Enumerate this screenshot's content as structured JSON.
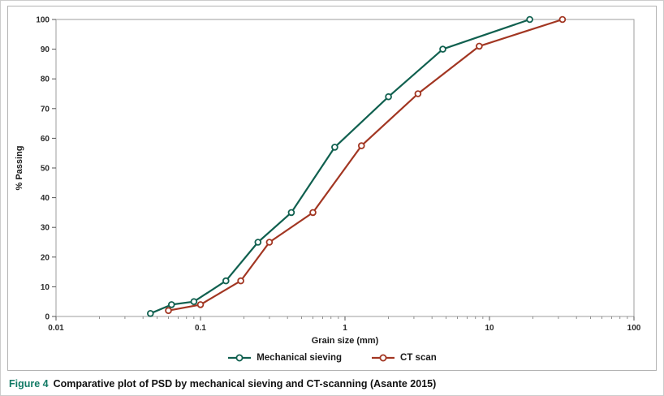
{
  "figure": {
    "caption_label": "Figure 4",
    "caption_text": "Comparative plot of PSD by mechanical sieving and CT-scanning (Asante 2015)",
    "caption_label_color": "#117a65"
  },
  "chart_data": {
    "type": "line",
    "x_scale": "log",
    "xlabel": "Grain size (mm)",
    "ylabel": "% Passing",
    "xlim": [
      0.01,
      100
    ],
    "ylim": [
      0,
      100
    ],
    "x_ticks": [
      0.01,
      0.1,
      1,
      10,
      100
    ],
    "x_tick_labels": [
      "0.01",
      "0.1",
      "1",
      "10",
      "100"
    ],
    "y_ticks": [
      0,
      10,
      20,
      30,
      40,
      50,
      60,
      70,
      80,
      90,
      100
    ],
    "grid": false,
    "legend_position": "bottom",
    "series": [
      {
        "name": "Mechanical sieving",
        "color": "#10604f",
        "marker": "circle-open",
        "points": [
          [
            0.045,
            1
          ],
          [
            0.063,
            4
          ],
          [
            0.09,
            5
          ],
          [
            0.15,
            12
          ],
          [
            0.25,
            25
          ],
          [
            0.425,
            35
          ],
          [
            0.85,
            57
          ],
          [
            2,
            74
          ],
          [
            4.75,
            90
          ],
          [
            19,
            100
          ]
        ]
      },
      {
        "name": "CT scan",
        "color": "#a23622",
        "marker": "circle-open",
        "points": [
          [
            0.06,
            2
          ],
          [
            0.1,
            4
          ],
          [
            0.19,
            12
          ],
          [
            0.3,
            25
          ],
          [
            0.6,
            35
          ],
          [
            1.3,
            57.5
          ],
          [
            3.2,
            75
          ],
          [
            8.5,
            91
          ],
          [
            32,
            100
          ]
        ]
      }
    ]
  }
}
